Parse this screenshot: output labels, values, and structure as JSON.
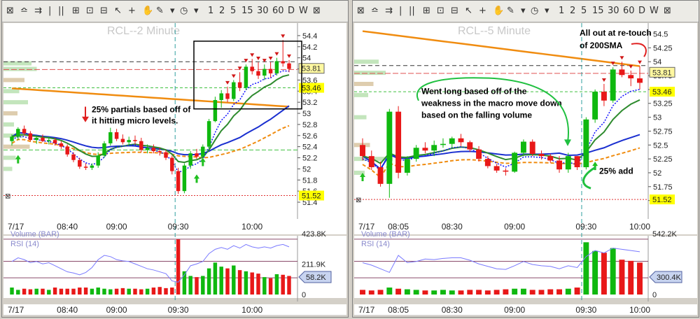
{
  "toolbar": {
    "icons": [
      "crosshair-icon",
      "bar-style-icon",
      "draw-bars-icon",
      "divider-icon",
      "columns-icon",
      "zoom-in-icon",
      "zoom-fit-icon",
      "zoom-out-icon",
      "cursor-icon",
      "plus-icon",
      "hand-icon",
      "pencil-icon",
      "dropdown-icon",
      "clock-icon",
      "dropdown-icon"
    ],
    "periods": [
      "1",
      "2",
      "5",
      "15",
      "30",
      "60",
      "D",
      "W"
    ],
    "close_glyph": "⊠"
  },
  "colors": {
    "up": "#0fb80f",
    "down": "#e81818",
    "ma_fast": "#1a2fd0",
    "ma_slow": "#2e8b2e",
    "ma_200": "#f08c10",
    "ma_dotted": "#1010ff",
    "profile": "#b8e0b0",
    "profile_tan": "#d8c4a0"
  },
  "chart_data": [
    {
      "type": "candlestick",
      "title": "RCL--2 Minute",
      "x_ticks": [
        "7/17",
        "08:40",
        "09:00",
        "09:30",
        "10:00"
      ],
      "y_ticks": [
        "54.4",
        "54.2",
        "54",
        "53.8",
        "53.6",
        "53.4",
        "53.2",
        "53",
        "52.8",
        "52.6",
        "52.4",
        "52.2",
        "52",
        "51.8",
        "51.6",
        "51.4"
      ],
      "ylim": [
        51.35,
        54.55
      ],
      "price_labels": {
        "top": "53.81",
        "mid": "53.46",
        "bottom": "51.52"
      },
      "annotations": [
        "25% partials based off of",
        "it hitting micro levels."
      ],
      "candles": [
        {
          "o": 52.5,
          "h": 52.62,
          "l": 52.42,
          "c": 52.58
        },
        {
          "o": 52.58,
          "h": 52.75,
          "l": 52.52,
          "c": 52.72
        },
        {
          "o": 52.72,
          "h": 52.78,
          "l": 52.6,
          "c": 52.64
        },
        {
          "o": 52.64,
          "h": 52.68,
          "l": 52.5,
          "c": 52.52
        },
        {
          "o": 52.52,
          "h": 52.6,
          "l": 52.45,
          "c": 52.56
        },
        {
          "o": 52.56,
          "h": 52.62,
          "l": 52.48,
          "c": 52.5
        },
        {
          "o": 52.5,
          "h": 52.58,
          "l": 52.44,
          "c": 52.52
        },
        {
          "o": 52.52,
          "h": 52.56,
          "l": 52.42,
          "c": 52.46
        },
        {
          "o": 52.46,
          "h": 52.5,
          "l": 52.36,
          "c": 52.4
        },
        {
          "o": 52.4,
          "h": 52.44,
          "l": 52.22,
          "c": 52.26
        },
        {
          "o": 52.26,
          "h": 52.3,
          "l": 52.12,
          "c": 52.16
        },
        {
          "o": 52.16,
          "h": 52.2,
          "l": 52.0,
          "c": 52.04
        },
        {
          "o": 52.04,
          "h": 52.1,
          "l": 51.98,
          "c": 52.02
        },
        {
          "o": 52.02,
          "h": 52.1,
          "l": 51.98,
          "c": 52.06
        },
        {
          "o": 52.06,
          "h": 52.3,
          "l": 52.02,
          "c": 52.24
        },
        {
          "o": 52.24,
          "h": 52.5,
          "l": 52.2,
          "c": 52.46
        },
        {
          "o": 52.46,
          "h": 52.74,
          "l": 52.42,
          "c": 52.66
        },
        {
          "o": 52.66,
          "h": 52.72,
          "l": 52.5,
          "c": 52.54
        },
        {
          "o": 52.54,
          "h": 52.62,
          "l": 52.44,
          "c": 52.48
        },
        {
          "o": 52.48,
          "h": 52.58,
          "l": 52.42,
          "c": 52.52
        },
        {
          "o": 52.52,
          "h": 52.6,
          "l": 52.44,
          "c": 52.5
        },
        {
          "o": 52.5,
          "h": 52.56,
          "l": 52.3,
          "c": 52.34
        },
        {
          "o": 52.34,
          "h": 52.44,
          "l": 52.28,
          "c": 52.38
        },
        {
          "o": 52.38,
          "h": 52.44,
          "l": 52.28,
          "c": 52.32
        },
        {
          "o": 52.32,
          "h": 52.38,
          "l": 52.24,
          "c": 52.3
        },
        {
          "o": 52.3,
          "h": 52.34,
          "l": 52.16,
          "c": 52.2
        },
        {
          "o": 52.2,
          "h": 52.24,
          "l": 51.9,
          "c": 51.96
        },
        {
          "o": 51.96,
          "h": 52.02,
          "l": 51.55,
          "c": 51.6
        },
        {
          "o": 51.6,
          "h": 52.1,
          "l": 51.56,
          "c": 52.06
        },
        {
          "o": 52.06,
          "h": 52.32,
          "l": 52.0,
          "c": 52.28
        },
        {
          "o": 52.28,
          "h": 52.36,
          "l": 52.18,
          "c": 52.22
        },
        {
          "o": 52.22,
          "h": 52.44,
          "l": 52.16,
          "c": 52.4
        },
        {
          "o": 52.4,
          "h": 52.9,
          "l": 52.36,
          "c": 52.86
        },
        {
          "o": 52.86,
          "h": 53.3,
          "l": 52.84,
          "c": 53.24
        },
        {
          "o": 53.24,
          "h": 53.42,
          "l": 53.1,
          "c": 53.36
        },
        {
          "o": 53.36,
          "h": 53.48,
          "l": 53.2,
          "c": 53.26
        },
        {
          "o": 53.26,
          "h": 53.6,
          "l": 53.22,
          "c": 53.56
        },
        {
          "o": 53.56,
          "h": 53.74,
          "l": 53.4,
          "c": 53.46
        },
        {
          "o": 53.46,
          "h": 53.88,
          "l": 53.42,
          "c": 53.84
        },
        {
          "o": 53.84,
          "h": 53.98,
          "l": 53.7,
          "c": 53.76
        },
        {
          "o": 53.76,
          "h": 53.92,
          "l": 53.62,
          "c": 53.68
        },
        {
          "o": 53.68,
          "h": 53.88,
          "l": 53.6,
          "c": 53.8
        },
        {
          "o": 53.8,
          "h": 53.92,
          "l": 53.64,
          "c": 53.72
        },
        {
          "o": 53.72,
          "h": 54.0,
          "l": 53.68,
          "c": 53.94
        },
        {
          "o": 53.94,
          "h": 54.32,
          "l": 53.84,
          "c": 53.9
        },
        {
          "o": 53.9,
          "h": 53.96,
          "l": 53.74,
          "c": 53.8
        }
      ],
      "volume_ticks": [
        "423.8K",
        "211.9K",
        "0"
      ],
      "volume_label": "58.2K",
      "panel_labels": [
        "Volume (BAR)",
        "RSI (14)"
      ],
      "volume": [
        0.12,
        0.08,
        0.1,
        0.09,
        0.1,
        0.1,
        0.08,
        0.12,
        0.1,
        0.1,
        0.1,
        0.12,
        0.12,
        0.1,
        0.12,
        0.1,
        0.09,
        0.1,
        0.11,
        0.1,
        0.1,
        0.09,
        0.1,
        0.12,
        0.13,
        0.11,
        0.12,
        0.95,
        0.4,
        0.32,
        0.3,
        0.32,
        0.45,
        0.55,
        0.48,
        0.45,
        0.5,
        0.42,
        0.4,
        0.38,
        0.36,
        0.3,
        0.28,
        0.35,
        0.34,
        0.32
      ],
      "rsi": [
        52,
        58,
        55,
        50,
        52,
        48,
        50,
        45,
        40,
        35,
        33,
        30,
        34,
        42,
        55,
        62,
        60,
        55,
        53,
        52,
        48,
        44,
        40,
        38,
        35,
        32,
        20,
        18,
        30,
        45,
        48,
        52,
        65,
        72,
        75,
        72,
        78,
        74,
        80,
        76,
        74,
        76,
        74,
        78,
        80,
        76
      ]
    },
    {
      "type": "candlestick",
      "title": "RCL--5 Minute",
      "x_ticks": [
        "7/17",
        "08:05",
        "08:30",
        "09:00",
        "09:30",
        "10:00"
      ],
      "y_ticks": [
        "54.5",
        "54.25",
        "54",
        "53.75",
        "53.5",
        "53.25",
        "53",
        "52.75",
        "52.5",
        "52.25",
        "52",
        "51.75",
        "51.5"
      ],
      "ylim": [
        51.42,
        54.62
      ],
      "price_labels": {
        "top": "53.81",
        "mid": "53.46",
        "bottom": "51.52"
      },
      "annotations": [
        "All out at re-touch",
        "of 200SMA",
        "Went long based off of the",
        "weakness in the macro move down",
        "based on the falling volume",
        "25% add"
      ],
      "candles": [
        {
          "o": 52.5,
          "h": 52.62,
          "l": 52.22,
          "c": 52.3
        },
        {
          "o": 52.3,
          "h": 52.4,
          "l": 52.05,
          "c": 52.1
        },
        {
          "o": 52.1,
          "h": 52.2,
          "l": 51.75,
          "c": 51.8
        },
        {
          "o": 51.8,
          "h": 53.15,
          "l": 51.55,
          "c": 53.1
        },
        {
          "o": 53.1,
          "h": 53.2,
          "l": 51.9,
          "c": 52.0
        },
        {
          "o": 52.0,
          "h": 52.3,
          "l": 51.95,
          "c": 52.25
        },
        {
          "o": 52.25,
          "h": 52.5,
          "l": 52.2,
          "c": 52.45
        },
        {
          "o": 52.45,
          "h": 52.55,
          "l": 52.35,
          "c": 52.4
        },
        {
          "o": 52.4,
          "h": 52.58,
          "l": 52.3,
          "c": 52.5
        },
        {
          "o": 52.5,
          "h": 52.62,
          "l": 52.45,
          "c": 52.52
        },
        {
          "o": 52.52,
          "h": 52.65,
          "l": 52.45,
          "c": 52.62
        },
        {
          "o": 52.62,
          "h": 52.7,
          "l": 52.48,
          "c": 52.55
        },
        {
          "o": 52.55,
          "h": 52.58,
          "l": 52.38,
          "c": 52.42
        },
        {
          "o": 52.42,
          "h": 52.48,
          "l": 52.2,
          "c": 52.25
        },
        {
          "o": 52.25,
          "h": 52.3,
          "l": 52.08,
          "c": 52.12
        },
        {
          "o": 52.12,
          "h": 52.16,
          "l": 52.0,
          "c": 52.04
        },
        {
          "o": 52.04,
          "h": 52.08,
          "l": 51.95,
          "c": 52.02
        },
        {
          "o": 52.02,
          "h": 52.38,
          "l": 52.0,
          "c": 52.36
        },
        {
          "o": 52.36,
          "h": 52.6,
          "l": 52.3,
          "c": 52.56
        },
        {
          "o": 52.56,
          "h": 52.6,
          "l": 52.3,
          "c": 52.34
        },
        {
          "o": 52.34,
          "h": 52.4,
          "l": 52.24,
          "c": 52.3
        },
        {
          "o": 52.3,
          "h": 52.34,
          "l": 52.18,
          "c": 52.22
        },
        {
          "o": 52.22,
          "h": 52.3,
          "l": 52.0,
          "c": 52.06
        },
        {
          "o": 52.06,
          "h": 52.36,
          "l": 52.0,
          "c": 52.3
        },
        {
          "o": 52.3,
          "h": 52.3,
          "l": 52.05,
          "c": 52.1
        },
        {
          "o": 52.1,
          "h": 53.0,
          "l": 52.06,
          "c": 52.96
        },
        {
          "o": 52.96,
          "h": 53.5,
          "l": 52.9,
          "c": 53.46
        },
        {
          "o": 53.46,
          "h": 53.6,
          "l": 53.2,
          "c": 53.3
        },
        {
          "o": 53.3,
          "h": 53.9,
          "l": 53.26,
          "c": 53.86
        },
        {
          "o": 53.86,
          "h": 54.0,
          "l": 53.72,
          "c": 53.76
        },
        {
          "o": 53.76,
          "h": 53.84,
          "l": 53.56,
          "c": 53.7
        },
        {
          "o": 53.7,
          "h": 53.92,
          "l": 53.5,
          "c": 53.62
        }
      ],
      "volume_ticks": [
        "542.2K",
        "0"
      ],
      "volume_label": "300.4K",
      "panel_labels": [
        "Volume (BAR)",
        "RSI (14)"
      ],
      "volume": [
        0.08,
        0.07,
        0.08,
        0.12,
        0.1,
        0.09,
        0.08,
        0.07,
        0.07,
        0.08,
        0.07,
        0.07,
        0.08,
        0.08,
        0.07,
        0.08,
        0.09,
        0.1,
        0.1,
        0.08,
        0.08,
        0.09,
        0.09,
        0.1,
        0.12,
        0.9,
        0.75,
        0.72,
        0.8,
        0.6,
        0.58,
        0.55
      ],
      "rsi": [
        50,
        46,
        40,
        34,
        62,
        50,
        52,
        56,
        55,
        57,
        58,
        58,
        54,
        48,
        44,
        40,
        39,
        45,
        52,
        47,
        45,
        44,
        40,
        45,
        42,
        60,
        70,
        66,
        74,
        72,
        70,
        68
      ]
    }
  ]
}
